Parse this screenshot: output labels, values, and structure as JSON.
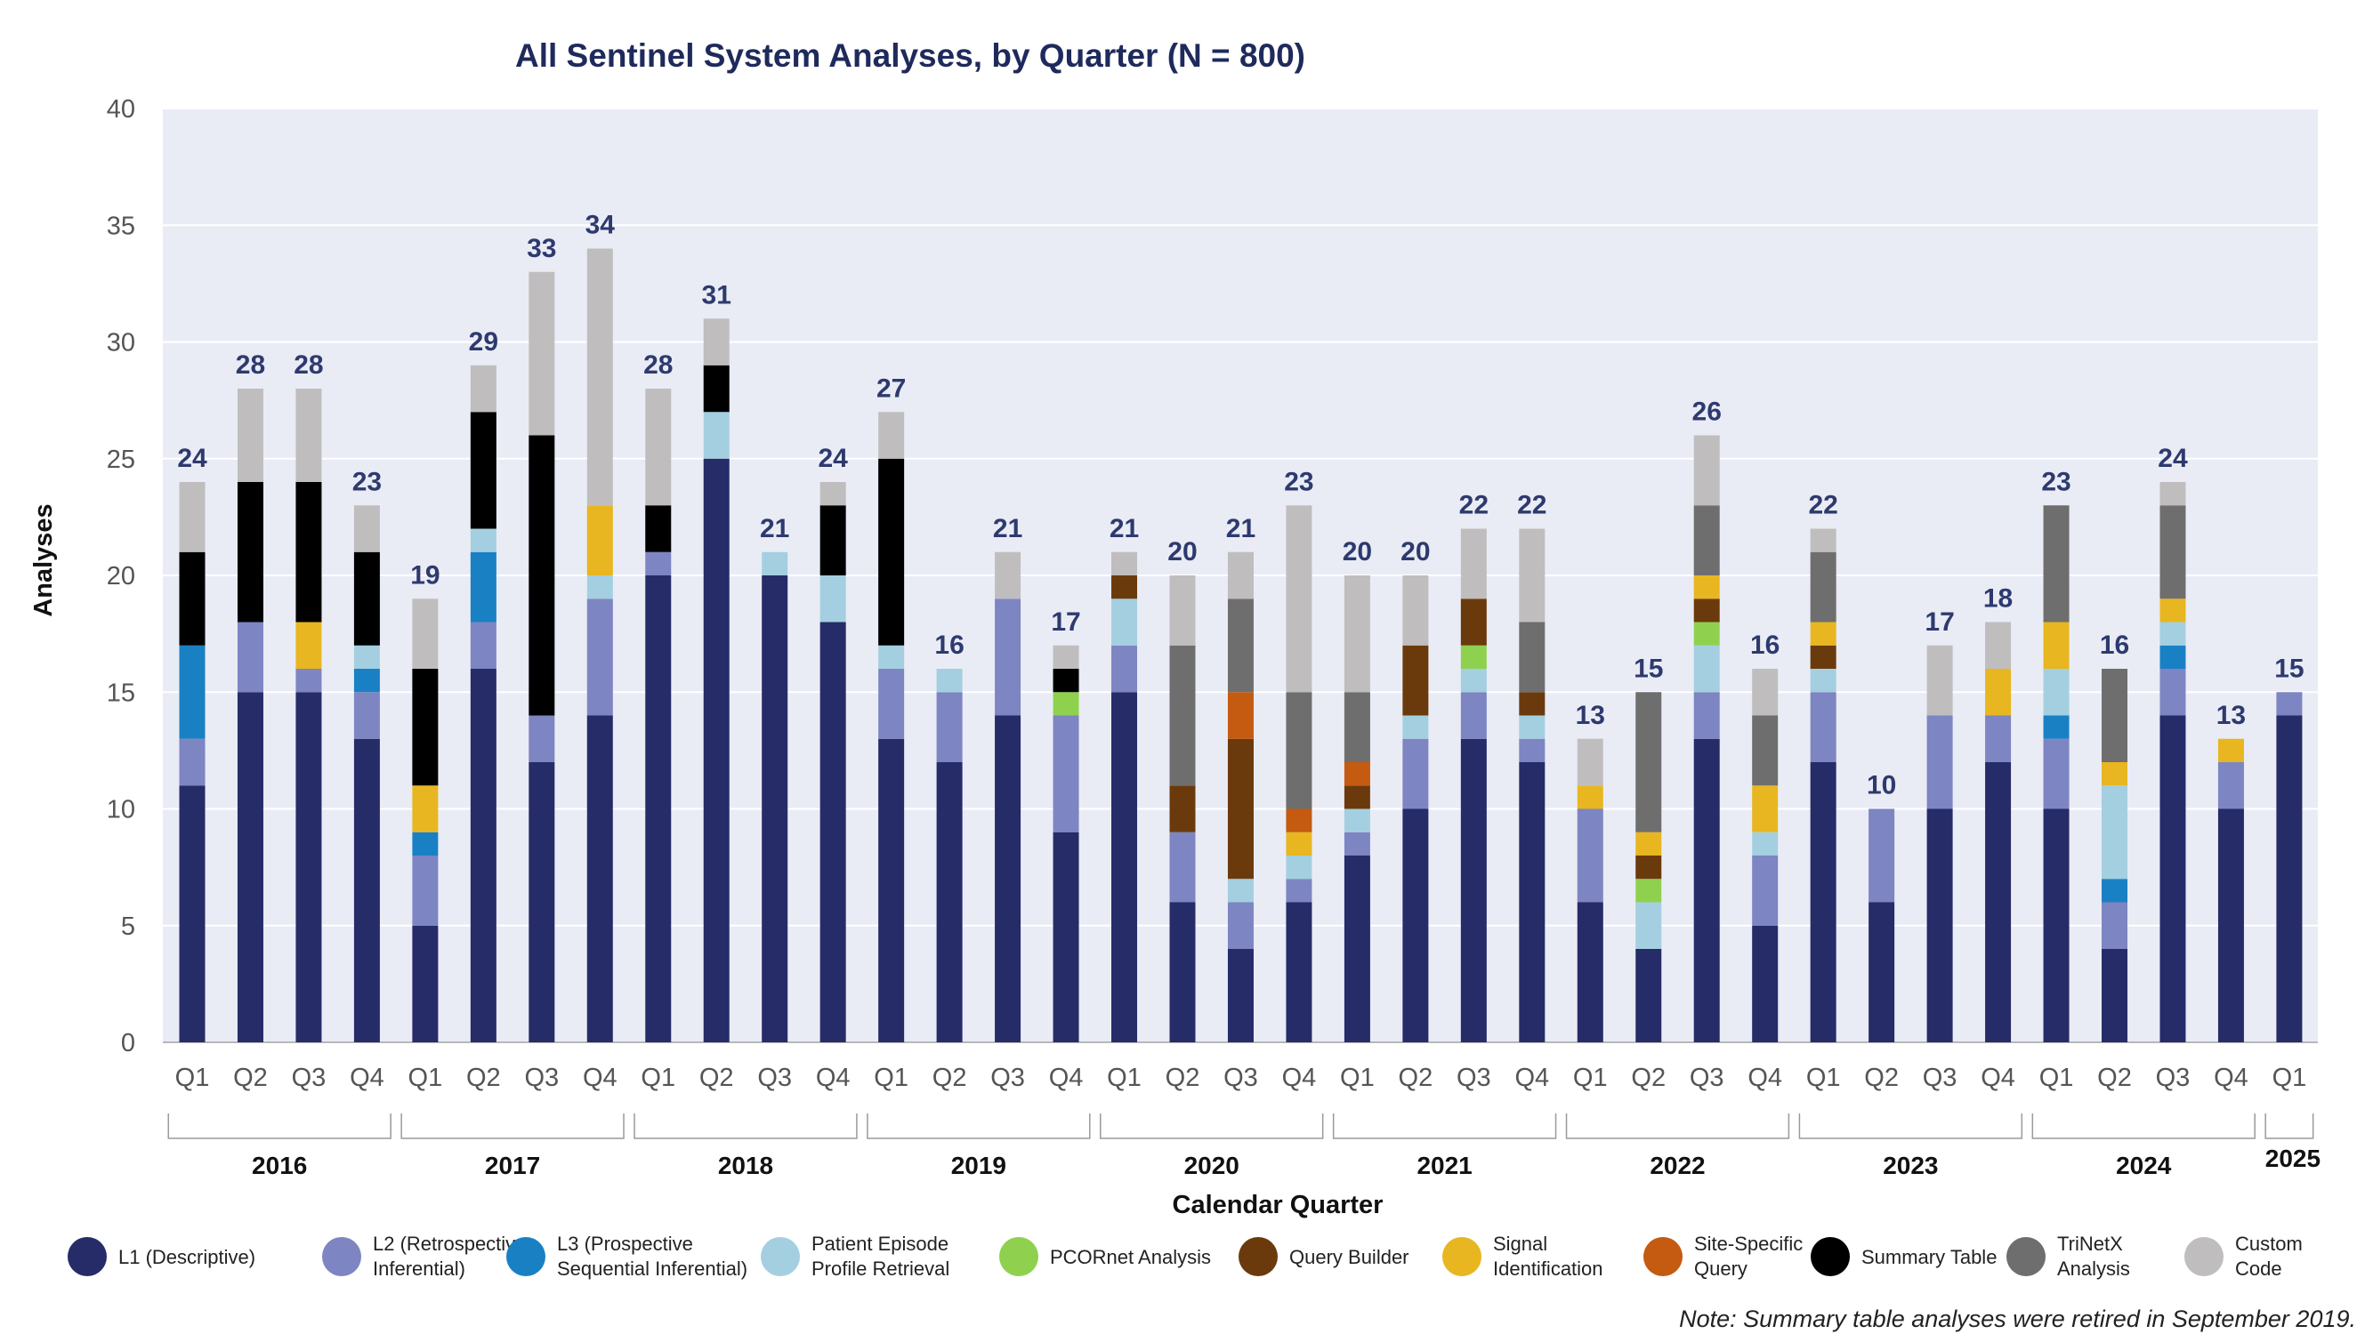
{
  "chart_data": {
    "type": "bar",
    "stacked": true,
    "title": "All Sentinel System Analyses, by Quarter (N = 800)",
    "xlabel": "Calendar Quarter",
    "ylabel": "Analyses",
    "ylim": [
      0,
      40
    ],
    "yticks": [
      0,
      5,
      10,
      15,
      20,
      25,
      30,
      35,
      40
    ],
    "grid": true,
    "legend_position": "bottom",
    "note": "Note: Summary table analyses were retired in September 2019.",
    "categories": [
      "Q1",
      "Q2",
      "Q3",
      "Q4",
      "Q1",
      "Q2",
      "Q3",
      "Q4",
      "Q1",
      "Q2",
      "Q3",
      "Q4",
      "Q1",
      "Q2",
      "Q3",
      "Q4",
      "Q1",
      "Q2",
      "Q3",
      "Q4",
      "Q1",
      "Q2",
      "Q3",
      "Q4",
      "Q1",
      "Q2",
      "Q3",
      "Q4",
      "Q1",
      "Q2",
      "Q3",
      "Q4",
      "Q1",
      "Q2",
      "Q3",
      "Q4",
      "Q1"
    ],
    "years": [
      {
        "label": "2016",
        "quarters": 4
      },
      {
        "label": "2017",
        "quarters": 4
      },
      {
        "label": "2018",
        "quarters": 4
      },
      {
        "label": "2019",
        "quarters": 4
      },
      {
        "label": "2020",
        "quarters": 4
      },
      {
        "label": "2021",
        "quarters": 4
      },
      {
        "label": "2022",
        "quarters": 4
      },
      {
        "label": "2023",
        "quarters": 4
      },
      {
        "label": "2024",
        "quarters": 4
      },
      {
        "label": "2025",
        "quarters": 1
      }
    ],
    "totals": [
      24,
      28,
      28,
      23,
      19,
      29,
      33,
      34,
      28,
      31,
      21,
      24,
      27,
      16,
      21,
      17,
      21,
      20,
      21,
      23,
      20,
      20,
      22,
      22,
      13,
      15,
      26,
      16,
      22,
      10,
      17,
      18,
      23,
      16,
      24,
      13,
      15
    ],
    "series": [
      {
        "name": "L1 (Descriptive)",
        "color": "#252c68",
        "values": [
          11,
          15,
          15,
          13,
          5,
          16,
          12,
          14,
          20,
          25,
          20,
          18,
          13,
          12,
          14,
          9,
          15,
          6,
          4,
          6,
          8,
          10,
          13,
          12,
          6,
          4,
          13,
          5,
          12,
          6,
          10,
          12,
          10,
          4,
          14,
          10,
          14
        ]
      },
      {
        "name": "L2 (Retrospective Inferential)",
        "color": "#7d85c2",
        "values": [
          2,
          3,
          1,
          2,
          3,
          2,
          2,
          5,
          1,
          0,
          0,
          0,
          3,
          3,
          5,
          5,
          2,
          3,
          2,
          1,
          1,
          3,
          2,
          1,
          4,
          0,
          2,
          3,
          3,
          4,
          4,
          2,
          3,
          2,
          2,
          2,
          1
        ]
      },
      {
        "name": "L3 (Prospective Sequential Inferential)",
        "color": "#1a80c4",
        "values": [
          4,
          0,
          0,
          1,
          1,
          3,
          0,
          0,
          0,
          0,
          0,
          0,
          0,
          0,
          0,
          0,
          0,
          0,
          0,
          0,
          0,
          0,
          0,
          0,
          0,
          0,
          0,
          0,
          0,
          0,
          0,
          0,
          1,
          1,
          1,
          0,
          0
        ]
      },
      {
        "name": "Patient Episode Profile Retrieval",
        "color": "#a4cfe0",
        "values": [
          0,
          0,
          0,
          1,
          0,
          1,
          0,
          1,
          0,
          2,
          1,
          2,
          1,
          1,
          0,
          0,
          2,
          0,
          1,
          1,
          1,
          1,
          1,
          1,
          0,
          2,
          2,
          1,
          1,
          0,
          0,
          0,
          2,
          4,
          1,
          0,
          0
        ]
      },
      {
        "name": "PCORnet Analysis",
        "color": "#8fd14f",
        "values": [
          0,
          0,
          0,
          0,
          0,
          0,
          0,
          0,
          0,
          0,
          0,
          0,
          0,
          0,
          0,
          1,
          0,
          0,
          0,
          0,
          0,
          0,
          1,
          0,
          0,
          1,
          1,
          0,
          0,
          0,
          0,
          0,
          0,
          0,
          0,
          0,
          0
        ]
      },
      {
        "name": "Query Builder",
        "color": "#6b3a0c",
        "values": [
          0,
          0,
          0,
          0,
          0,
          0,
          0,
          0,
          0,
          0,
          0,
          0,
          0,
          0,
          0,
          0,
          1,
          2,
          6,
          0,
          1,
          3,
          2,
          1,
          0,
          1,
          1,
          0,
          1,
          0,
          0,
          0,
          0,
          0,
          0,
          0,
          0
        ]
      },
      {
        "name": "Signal Identification",
        "color": "#e8b620",
        "values": [
          0,
          0,
          2,
          0,
          2,
          0,
          0,
          3,
          0,
          0,
          0,
          0,
          0,
          0,
          0,
          0,
          0,
          0,
          0,
          1,
          0,
          0,
          0,
          0,
          1,
          1,
          1,
          2,
          1,
          0,
          0,
          2,
          2,
          1,
          1,
          1,
          0
        ]
      },
      {
        "name": "Site-Specific Query",
        "color": "#c55a11",
        "values": [
          0,
          0,
          0,
          0,
          0,
          0,
          0,
          0,
          0,
          0,
          0,
          0,
          0,
          0,
          0,
          0,
          0,
          0,
          2,
          1,
          1,
          0,
          0,
          0,
          0,
          0,
          0,
          0,
          0,
          0,
          0,
          0,
          0,
          0,
          0,
          0,
          0
        ]
      },
      {
        "name": "Summary Table",
        "color": "#000000",
        "values": [
          4,
          6,
          6,
          4,
          5,
          5,
          12,
          0,
          2,
          2,
          0,
          3,
          8,
          0,
          0,
          1,
          0,
          0,
          0,
          0,
          0,
          0,
          0,
          0,
          0,
          0,
          0,
          0,
          0,
          0,
          0,
          0,
          0,
          0,
          0,
          0,
          0
        ]
      },
      {
        "name": "TriNetX Analysis",
        "color": "#6e6e6e",
        "values": [
          0,
          0,
          0,
          0,
          0,
          0,
          0,
          0,
          0,
          0,
          0,
          0,
          0,
          0,
          0,
          0,
          0,
          6,
          4,
          5,
          3,
          0,
          0,
          3,
          0,
          6,
          3,
          3,
          3,
          0,
          0,
          0,
          5,
          4,
          4,
          0,
          0
        ]
      },
      {
        "name": "Custom Code",
        "color": "#c0bdbf",
        "values": [
          3,
          4,
          4,
          2,
          3,
          2,
          7,
          11,
          5,
          2,
          0,
          1,
          2,
          0,
          2,
          1,
          1,
          3,
          2,
          8,
          5,
          3,
          3,
          4,
          2,
          0,
          3,
          2,
          1,
          0,
          3,
          2,
          0,
          0,
          1,
          0,
          0
        ]
      }
    ],
    "legend_labels": [
      [
        "L1 (Descriptive)"
      ],
      [
        "L2 (Retrospective",
        "Inferential)"
      ],
      [
        "L3 (Prospective",
        "Sequential Inferential)"
      ],
      [
        "Patient Episode",
        "Profile Retrieval"
      ],
      [
        "PCORnet Analysis"
      ],
      [
        "Query Builder"
      ],
      [
        "Signal",
        "Identification"
      ],
      [
        "Site-Specific",
        "Query"
      ],
      [
        "Summary Table"
      ],
      [
        "TriNetX",
        "Analysis"
      ],
      [
        "Custom",
        "Code"
      ]
    ]
  }
}
